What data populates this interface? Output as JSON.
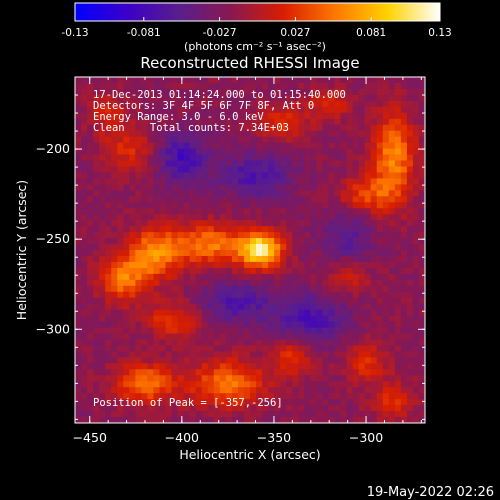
{
  "colorbar": {
    "min": -0.13,
    "max": 0.13,
    "tick_labels": [
      "-0.13",
      "-0.081",
      "-0.027",
      "0.027",
      "0.081",
      "0.13"
    ],
    "tick_values": [
      -0.13,
      -0.081,
      -0.027,
      0.027,
      0.081,
      0.13
    ],
    "units_label": "(photons cm⁻² s⁻¹ asec⁻²)",
    "colors": [
      "#0000ff",
      "#3c00c8",
      "#5a1e8c",
      "#8a1850",
      "#d81e00",
      "#ff7800",
      "#ffd200",
      "#ffffff"
    ]
  },
  "chart_data": {
    "type": "heatmap",
    "title": "Reconstructed RHESSI Image",
    "xlabel": "Heliocentric X (arcsec)",
    "ylabel": "Heliocentric Y (arcsec)",
    "xlim": [
      -458,
      -268
    ],
    "ylim": [
      -352,
      -160
    ],
    "x_ticks": [
      -450,
      -400,
      -350,
      -300
    ],
    "y_ticks": [
      -200,
      -250,
      -300
    ],
    "x_tick_labels": [
      "−450",
      "−400",
      "−350",
      "−300"
    ],
    "y_tick_labels": [
      "−200",
      "−250",
      "−300"
    ],
    "info_lines": [
      "17-Dec-2013 01:14:24.000 to 01:15:40.000",
      "Detectors: 3F 4F 5F 6F 7F 8F, Att 0",
      "Energy Range: 3.0 - 6.0 keV",
      "Clean    Total counts: 7.34E+03"
    ],
    "peak_label": "Position of Peak = [-357,-256]",
    "peak": [
      -357,
      -256
    ],
    "sources": [
      {
        "x": -357,
        "y": -256,
        "amp": 0.13,
        "sx": 8,
        "sy": 7
      },
      {
        "x": -385,
        "y": -253,
        "amp": 0.075,
        "sx": 14,
        "sy": 8
      },
      {
        "x": -415,
        "y": -258,
        "amp": 0.08,
        "sx": 10,
        "sy": 10
      },
      {
        "x": -432,
        "y": -272,
        "amp": 0.07,
        "sx": 9,
        "sy": 9
      },
      {
        "x": -405,
        "y": -295,
        "amp": 0.05,
        "sx": 10,
        "sy": 7
      },
      {
        "x": -285,
        "y": -205,
        "amp": 0.08,
        "sx": 8,
        "sy": 18
      },
      {
        "x": -300,
        "y": -225,
        "amp": 0.05,
        "sx": 10,
        "sy": 7
      },
      {
        "x": -345,
        "y": -185,
        "amp": 0.045,
        "sx": 10,
        "sy": 7
      },
      {
        "x": -320,
        "y": -175,
        "amp": 0.04,
        "sx": 8,
        "sy": 6
      },
      {
        "x": -428,
        "y": -200,
        "amp": 0.04,
        "sx": 10,
        "sy": 9
      },
      {
        "x": -440,
        "y": -180,
        "amp": 0.035,
        "sx": 8,
        "sy": 8
      },
      {
        "x": -420,
        "y": -330,
        "amp": 0.07,
        "sx": 12,
        "sy": 8
      },
      {
        "x": -375,
        "y": -330,
        "amp": 0.075,
        "sx": 14,
        "sy": 9
      },
      {
        "x": -340,
        "y": -315,
        "amp": 0.045,
        "sx": 8,
        "sy": 8
      },
      {
        "x": -300,
        "y": -318,
        "amp": 0.045,
        "sx": 8,
        "sy": 8
      },
      {
        "x": -285,
        "y": -340,
        "amp": 0.04,
        "sx": 8,
        "sy": 8
      },
      {
        "x": -310,
        "y": -270,
        "amp": 0.035,
        "sx": 8,
        "sy": 7
      },
      {
        "x": -400,
        "y": -205,
        "amp": -0.06,
        "sx": 10,
        "sy": 10
      },
      {
        "x": -360,
        "y": -215,
        "amp": -0.05,
        "sx": 14,
        "sy": 9
      },
      {
        "x": -330,
        "y": -295,
        "amp": -0.055,
        "sx": 14,
        "sy": 10
      },
      {
        "x": -370,
        "y": -285,
        "amp": -0.05,
        "sx": 14,
        "sy": 8
      },
      {
        "x": -310,
        "y": -250,
        "amp": -0.04,
        "sx": 10,
        "sy": 10
      }
    ]
  },
  "footer": {
    "timestamp": "19-May-2022 02:26"
  }
}
